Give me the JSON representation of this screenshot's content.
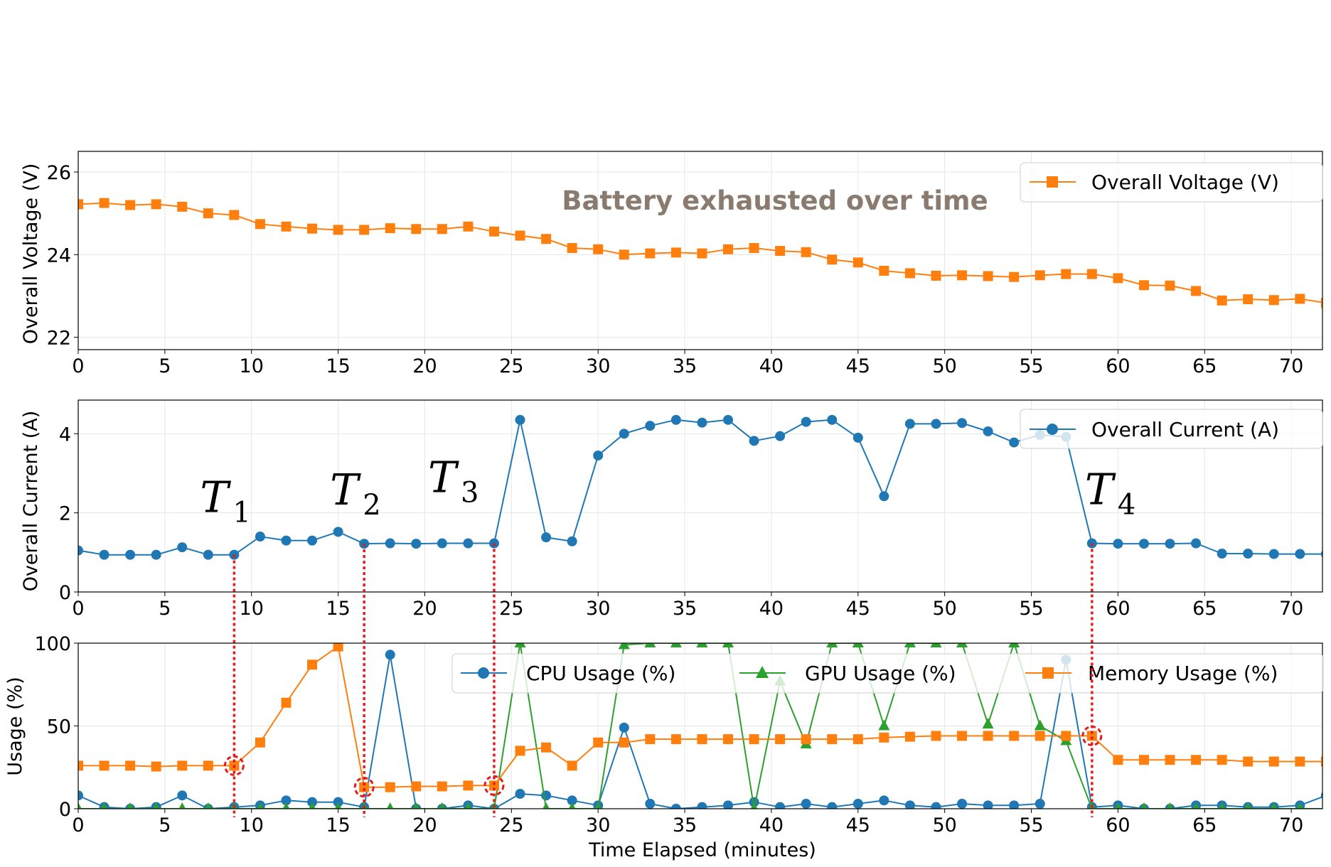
{
  "colors": {
    "cpu": "#1f77b4",
    "gpu": "#2ca02c",
    "memory": "#ff7f0e",
    "voltage": "#ff7f0e",
    "current": "#1f77b4",
    "marker_line": "#e41a1c",
    "annotation": "#8a7b70"
  },
  "xaxis": {
    "label": "Time Elapsed (minutes)",
    "ticks": [
      0,
      5,
      10,
      15,
      20,
      25,
      30,
      35,
      40,
      45,
      50,
      55,
      60,
      65,
      70
    ],
    "xlim": [
      0,
      71.8
    ]
  },
  "annotation": "Battery exhausted over time",
  "events": [
    {
      "label": "T",
      "sub": "1",
      "x": 9.0
    },
    {
      "label": "T",
      "sub": "2",
      "x": 16.5
    },
    {
      "label": "T",
      "sub": "3",
      "x": 24.0
    },
    {
      "label": "T",
      "sub": "4",
      "x": 58.5
    }
  ],
  "chart_data": [
    {
      "type": "line",
      "title": "",
      "xlabel": "",
      "ylabel": "Overall Voltage (V)",
      "ylim": [
        21.7,
        26.5
      ],
      "yticks": [
        22,
        24,
        26
      ],
      "legend": "top-right",
      "x": [
        0,
        1.5,
        3,
        4.5,
        6,
        7.5,
        9,
        10.5,
        12,
        13.5,
        15,
        16.5,
        18,
        19.5,
        21,
        22.5,
        24,
        25.5,
        27,
        28.5,
        30,
        31.5,
        33,
        34.5,
        36,
        37.5,
        39,
        40.5,
        42,
        43.5,
        45,
        46.5,
        48,
        49.5,
        51,
        52.5,
        54,
        55.5,
        57,
        58.5,
        60,
        61.5,
        63,
        64.5,
        66,
        67.5,
        69,
        70.5,
        72
      ],
      "series": [
        {
          "name": "Overall Voltage (V)",
          "marker": "square",
          "values": [
            25.22,
            25.25,
            25.2,
            25.22,
            25.16,
            25.0,
            24.96,
            24.74,
            24.68,
            24.63,
            24.6,
            24.6,
            24.64,
            24.62,
            24.62,
            24.68,
            24.56,
            24.46,
            24.38,
            24.16,
            24.13,
            24.0,
            24.03,
            24.05,
            24.03,
            24.13,
            24.16,
            24.09,
            24.06,
            23.88,
            23.81,
            23.61,
            23.55,
            23.49,
            23.5,
            23.48,
            23.46,
            23.5,
            23.53,
            23.53,
            23.43,
            23.26,
            23.25,
            23.12,
            22.89,
            22.92,
            22.9,
            22.93,
            22.83
          ]
        }
      ]
    },
    {
      "type": "line",
      "title": "",
      "xlabel": "",
      "ylabel": "Overall Current (A)",
      "ylim": [
        0,
        4.85
      ],
      "yticks": [
        0,
        2,
        4
      ],
      "legend": "top-right",
      "x": [
        0,
        1.5,
        3,
        4.5,
        6,
        7.5,
        9,
        10.5,
        12,
        13.5,
        15,
        16.5,
        18,
        19.5,
        21,
        22.5,
        24,
        25.5,
        27,
        28.5,
        30,
        31.5,
        33,
        34.5,
        36,
        37.5,
        39,
        40.5,
        42,
        43.5,
        45,
        46.5,
        48,
        49.5,
        51,
        52.5,
        54,
        55.5,
        57,
        58.5,
        60,
        61.5,
        63,
        64.5,
        66,
        67.5,
        69,
        70.5,
        72
      ],
      "series": [
        {
          "name": "Overall Current (A)",
          "marker": "circle",
          "values": [
            1.05,
            0.94,
            0.94,
            0.94,
            1.13,
            0.94,
            0.94,
            1.4,
            1.3,
            1.3,
            1.52,
            1.22,
            1.23,
            1.22,
            1.23,
            1.23,
            1.23,
            4.35,
            1.38,
            1.28,
            3.45,
            4.0,
            4.2,
            4.35,
            4.28,
            4.35,
            3.82,
            3.94,
            4.3,
            4.35,
            3.9,
            2.42,
            4.25,
            4.25,
            4.27,
            4.06,
            3.78,
            3.97,
            3.92,
            1.23,
            1.22,
            1.22,
            1.22,
            1.23,
            0.97,
            0.97,
            0.96,
            0.96,
            0.96
          ]
        }
      ]
    },
    {
      "type": "line",
      "title": "",
      "xlabel": "Time Elapsed (minutes)",
      "ylabel": "Usage (%)",
      "ylim": [
        0,
        100
      ],
      "yticks": [
        0,
        50,
        100
      ],
      "legend": "top-right",
      "x": [
        0,
        1.5,
        3,
        4.5,
        6,
        7.5,
        9,
        10.5,
        12,
        13.5,
        15,
        16.5,
        18,
        19.5,
        21,
        22.5,
        24,
        25.5,
        27,
        28.5,
        30,
        31.5,
        33,
        34.5,
        36,
        37.5,
        39,
        40.5,
        42,
        43.5,
        45,
        46.5,
        48,
        49.5,
        51,
        52.5,
        54,
        55.5,
        57,
        58.5,
        60,
        61.5,
        63,
        64.5,
        66,
        67.5,
        69,
        70.5,
        72
      ],
      "series": [
        {
          "name": "CPU Usage (%)",
          "marker": "circle",
          "values": [
            8,
            1,
            0,
            1,
            8,
            0,
            1,
            2,
            5,
            4,
            4,
            1,
            93,
            0,
            0,
            2,
            0,
            9,
            8,
            5,
            2,
            49,
            3,
            0,
            1,
            2,
            4,
            1,
            3,
            1,
            3,
            5,
            2,
            1,
            3,
            2,
            2,
            3,
            90,
            1,
            2,
            0,
            0,
            2,
            2,
            1,
            1,
            2,
            8
          ]
        },
        {
          "name": "GPU Usage (%)",
          "marker": "triangle",
          "values": [
            0,
            0,
            0,
            0,
            0,
            0,
            0,
            0,
            0,
            0,
            0,
            0,
            0,
            0,
            0,
            0,
            0,
            100,
            0,
            0,
            0,
            99,
            100,
            100,
            100,
            100,
            0,
            77,
            39,
            100,
            100,
            50,
            100,
            100,
            100,
            51,
            100,
            50,
            41,
            0,
            0,
            0,
            0,
            0,
            0,
            0,
            0,
            0,
            0
          ]
        },
        {
          "name": "Memory Usage (%)",
          "marker": "square",
          "values": [
            26,
            26,
            26,
            25.5,
            26,
            26,
            26,
            40,
            64,
            87,
            98,
            13,
            13,
            13.5,
            13.5,
            14,
            14,
            35,
            37,
            26,
            40,
            40,
            42,
            42,
            42,
            42,
            42,
            42,
            42,
            42,
            42,
            43,
            43.5,
            44,
            44,
            44,
            44,
            44,
            44,
            44,
            29.5,
            29.5,
            29.5,
            29.5,
            29.5,
            28.5,
            28.5,
            28.5,
            28.5
          ]
        }
      ],
      "highlight_points": [
        {
          "x": 9.0,
          "y": 26
        },
        {
          "x": 16.5,
          "y": 13
        },
        {
          "x": 24.0,
          "y": 14
        },
        {
          "x": 58.5,
          "y": 44
        }
      ]
    }
  ]
}
